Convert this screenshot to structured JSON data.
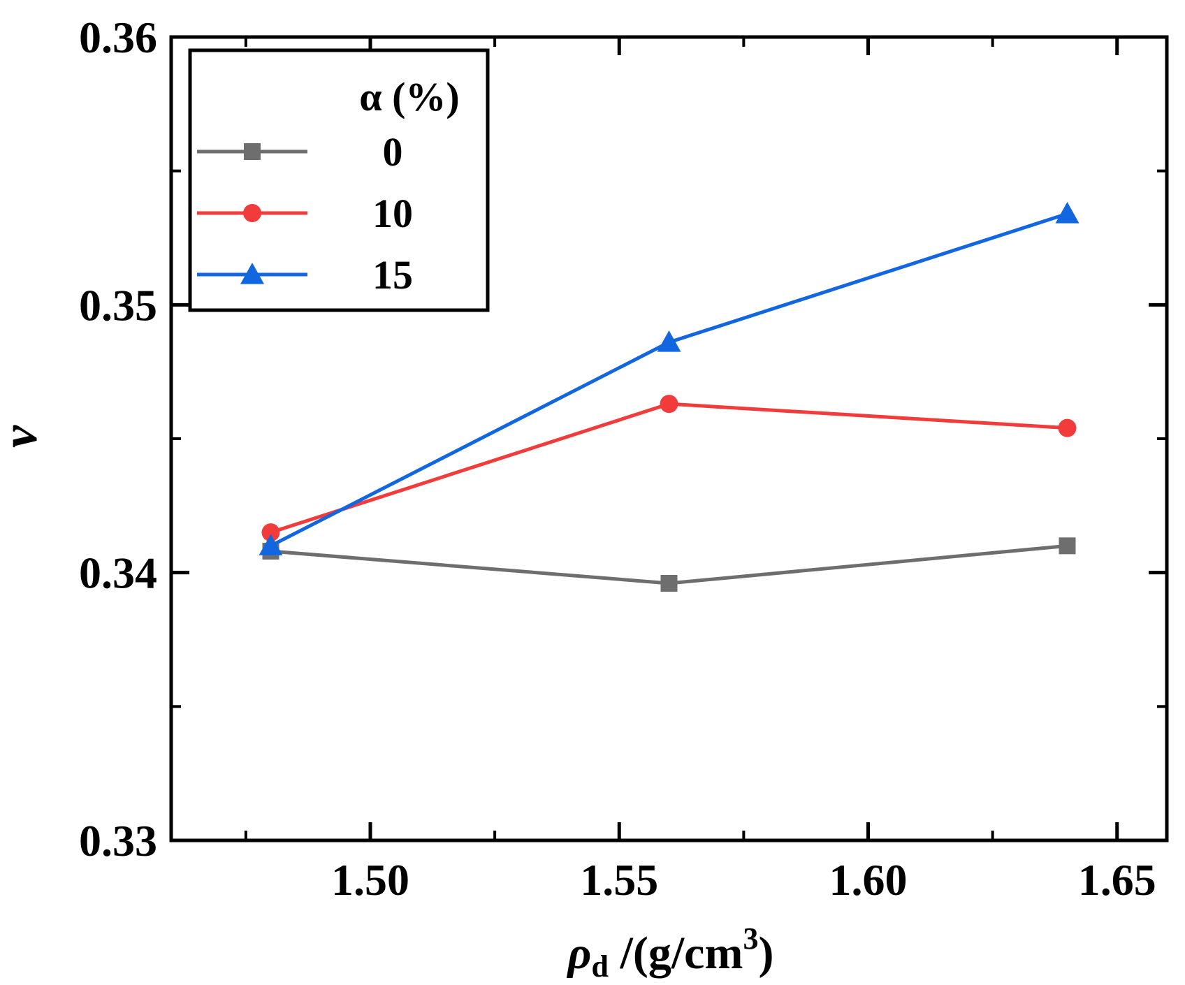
{
  "chart_data": {
    "type": "line",
    "x_axis": {
      "label_main": "ρ",
      "label_sub": "d",
      "label_rest": " /(g/cm",
      "label_sup": "3",
      "label_close": ")",
      "xlim": [
        1.46,
        1.66
      ],
      "major_ticks": [
        1.5,
        1.55,
        1.6,
        1.65
      ],
      "tick_labels": [
        "1.50",
        "1.55",
        "1.60",
        "1.65"
      ],
      "minor_ticks": [
        1.475,
        1.525,
        1.575,
        1.625
      ]
    },
    "y_axis": {
      "label": "ν",
      "ylim": [
        0.33,
        0.36
      ],
      "major_ticks": [
        0.33,
        0.34,
        0.35,
        0.36
      ],
      "tick_labels": [
        "0.33",
        "0.34",
        "0.35",
        "0.36"
      ],
      "minor_ticks": [
        0.335,
        0.345,
        0.355
      ]
    },
    "legend": {
      "title": "α (%)",
      "position": "top-left"
    },
    "x": [
      1.48,
      1.56,
      1.64
    ],
    "series": [
      {
        "name": "0",
        "marker": "square",
        "color": "#6e6e6e",
        "values": [
          0.3408,
          0.3396,
          0.341
        ]
      },
      {
        "name": "10",
        "marker": "circle",
        "color": "#f23c3c",
        "values": [
          0.3415,
          0.3463,
          0.3454
        ]
      },
      {
        "name": "15",
        "marker": "triangle",
        "color": "#1266e0",
        "values": [
          0.341,
          0.3486,
          0.3534
        ]
      }
    ]
  }
}
